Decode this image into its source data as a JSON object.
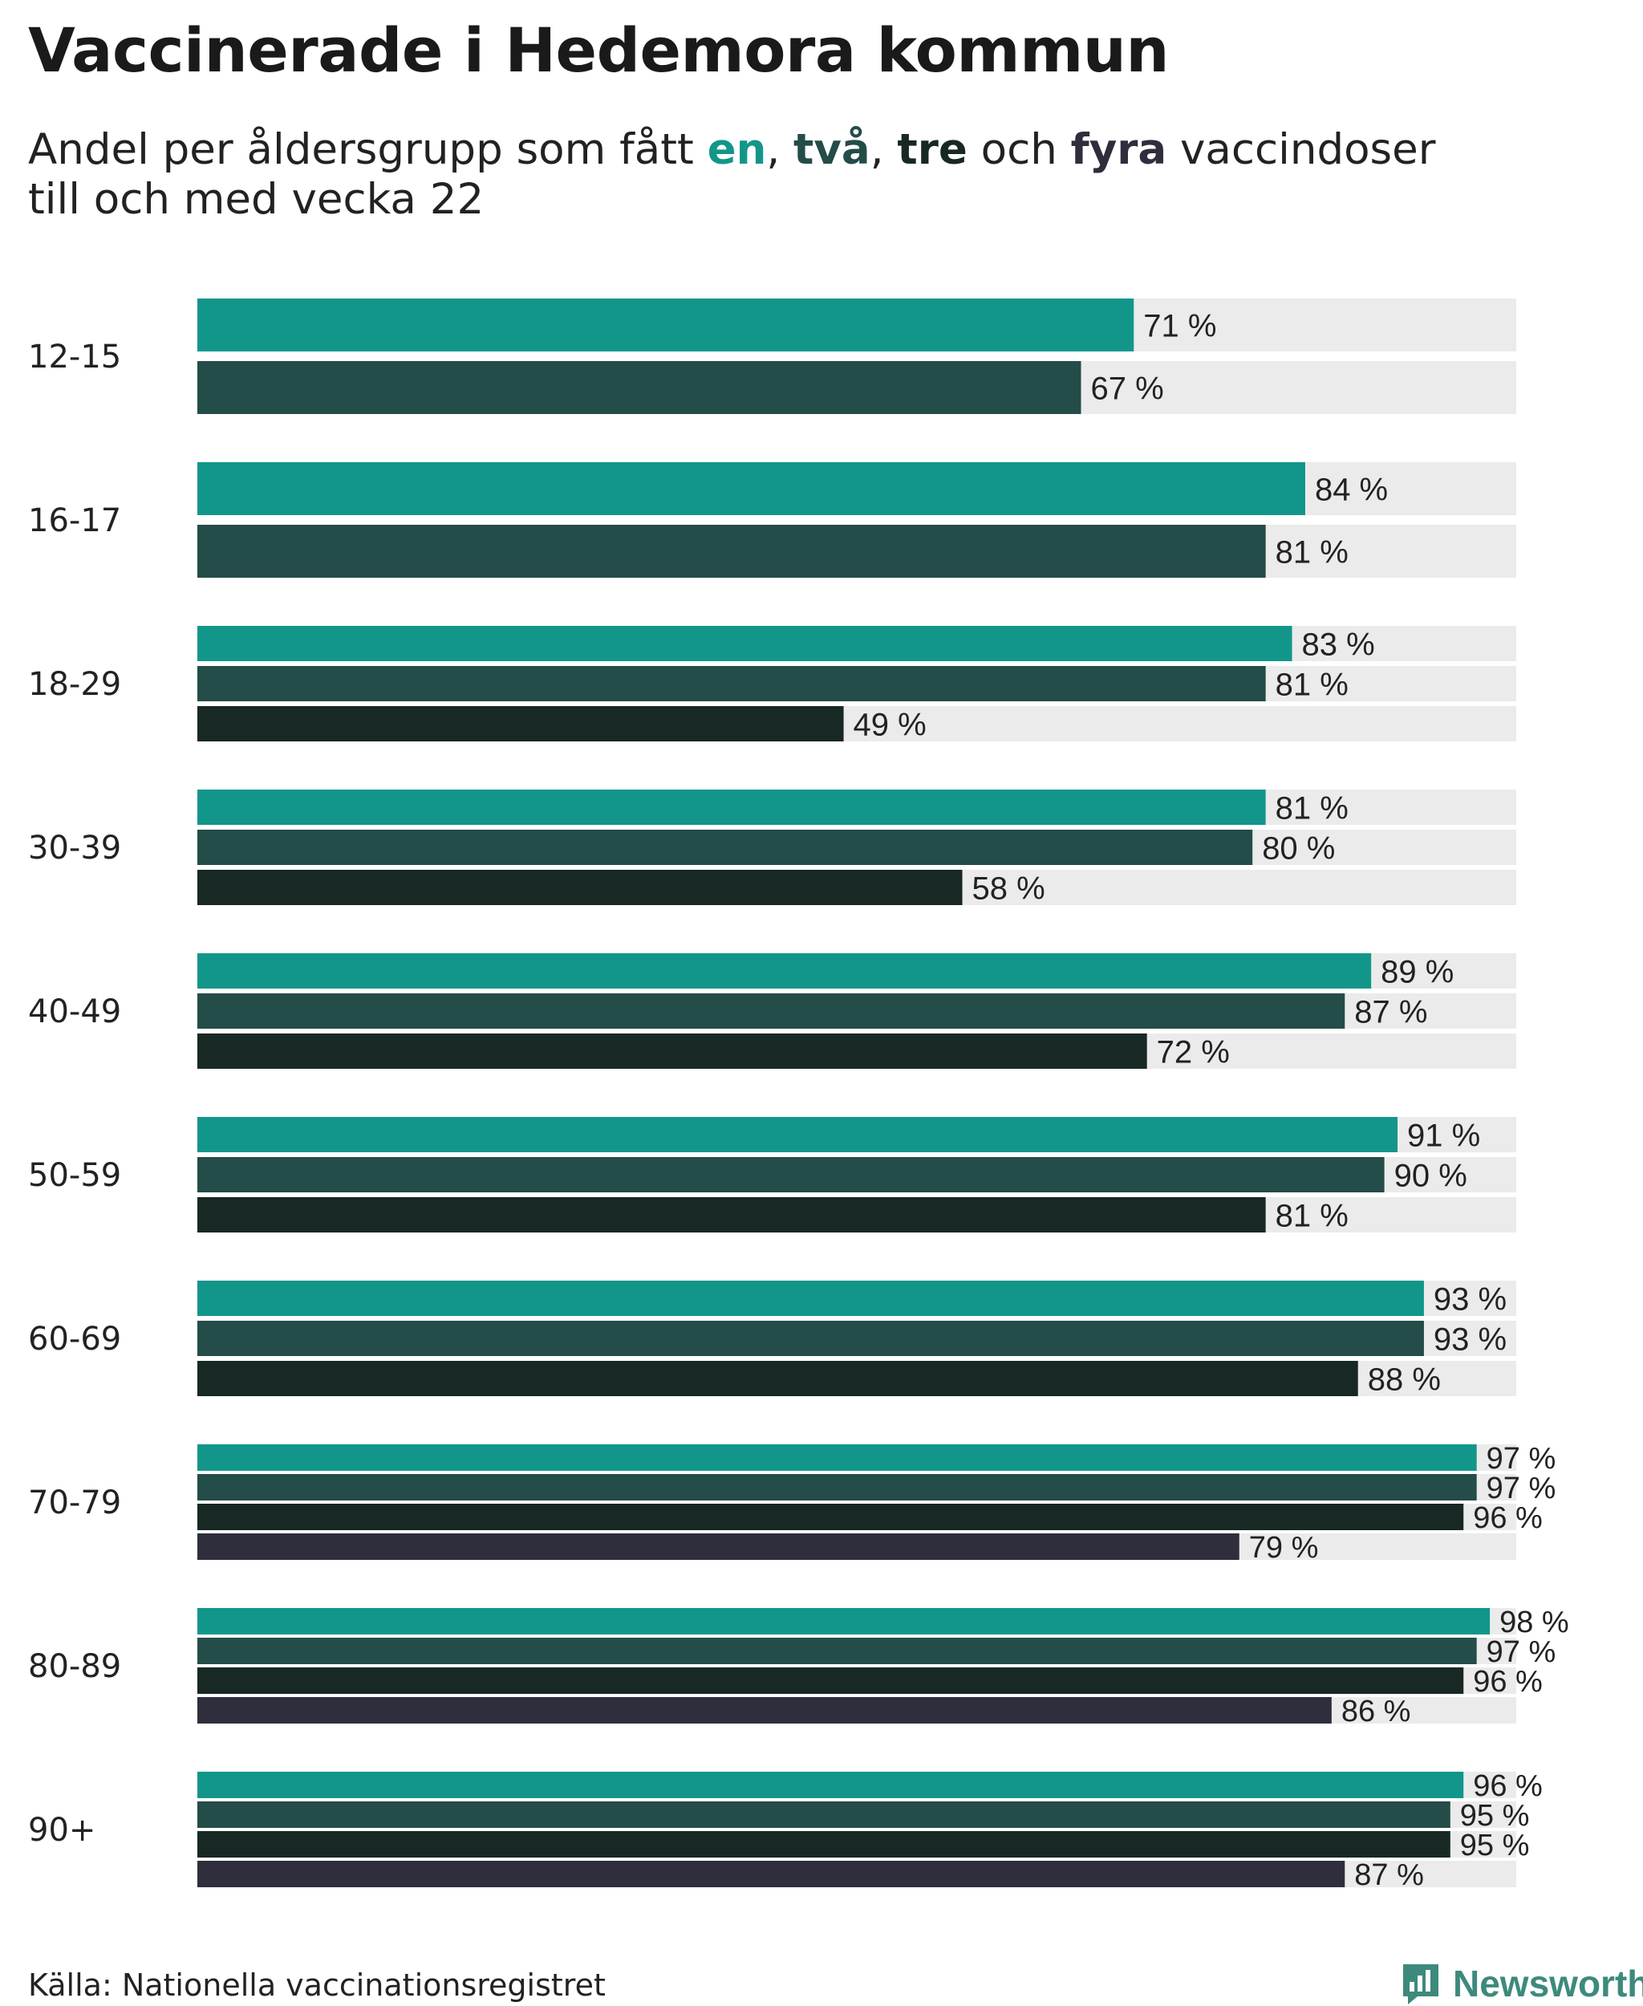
{
  "title": "Vaccinerade i Hedemora kommun",
  "subtitle": {
    "prefix": "Andel per åldersgrupp som fått ",
    "kw_en": "en",
    "sep1": ", ",
    "kw_tva": "två",
    "sep2": ", ",
    "kw_tre": "tre",
    "sep3": " och ",
    "kw_fyra": "fyra",
    "suffix": " vaccindoser",
    "line2": "till och med vecka 22"
  },
  "source": "Källa: Nationella vaccinationsregistret",
  "logo": {
    "text": "Newsworthy",
    "icon": "newsworthy-chart-icon",
    "color": "#3d8a7c"
  },
  "colors": {
    "dose1": "#13968a",
    "dose2": "#244c48",
    "dose3": "#182824",
    "dose4": "#2e2e3c",
    "track": "#ebebeb"
  },
  "chart_data": {
    "type": "bar",
    "orientation": "horizontal",
    "value_suffix": " %",
    "xlim": [
      0,
      100
    ],
    "categories": [
      "12-15",
      "16-17",
      "18-29",
      "30-39",
      "40-49",
      "50-59",
      "60-69",
      "70-79",
      "80-89",
      "90+"
    ],
    "series": [
      {
        "name": "en",
        "values": [
          71,
          84,
          83,
          81,
          89,
          91,
          93,
          97,
          98,
          96
        ]
      },
      {
        "name": "två",
        "values": [
          67,
          81,
          81,
          80,
          87,
          90,
          93,
          97,
          97,
          95
        ]
      },
      {
        "name": "tre",
        "values": [
          null,
          null,
          49,
          58,
          72,
          81,
          88,
          96,
          96,
          95
        ]
      },
      {
        "name": "fyra",
        "values": [
          null,
          null,
          null,
          null,
          null,
          null,
          null,
          79,
          86,
          87
        ]
      }
    ]
  }
}
